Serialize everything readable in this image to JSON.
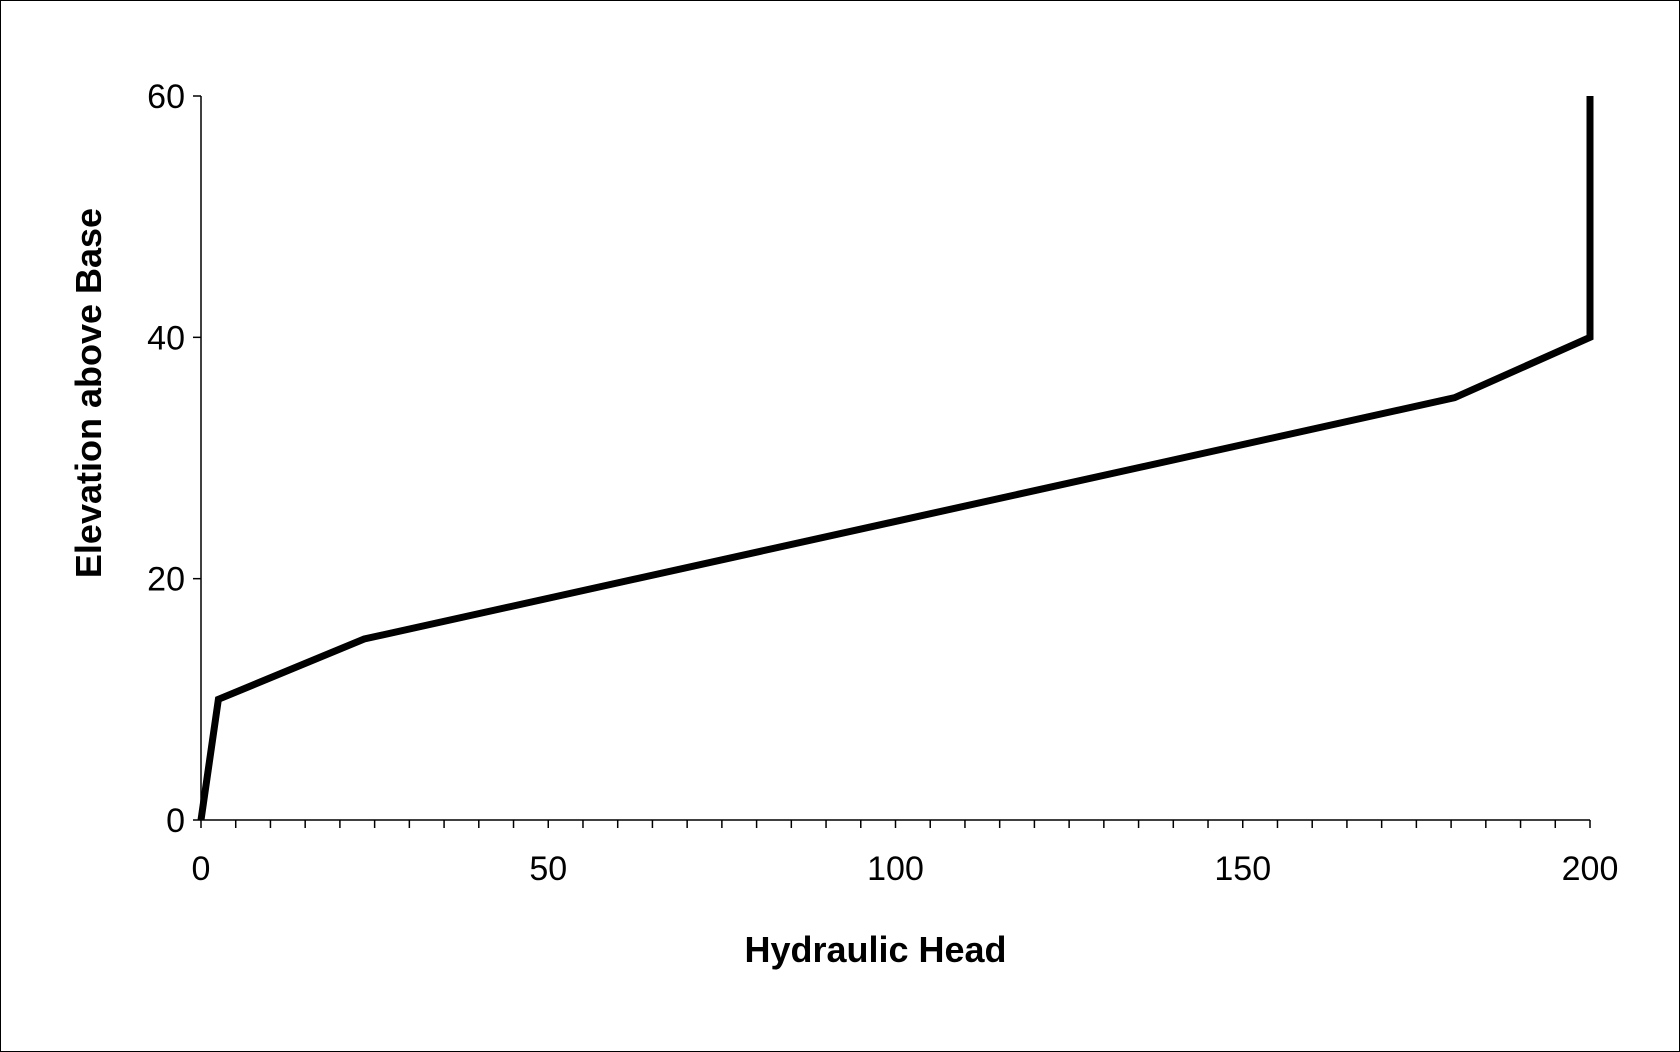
{
  "chart_data": {
    "type": "line",
    "title": "",
    "xlabel": "Hydraulic Head",
    "ylabel": "Elevation above Base",
    "xlim": [
      0,
      200
    ],
    "ylim": [
      0,
      60
    ],
    "x_ticks": [
      0,
      50,
      100,
      150,
      200
    ],
    "x_tick_labels": [
      "0",
      "50",
      "100",
      "150",
      "200"
    ],
    "x_minor_tick_step": 5,
    "y_ticks": [
      0,
      20,
      40,
      60
    ],
    "y_tick_labels": [
      "0",
      "20",
      "40",
      "60"
    ],
    "grid": false,
    "legend": "none",
    "series": [
      {
        "color": "#000000",
        "x": [
          0,
          2.5,
          23.5,
          180.5,
          200,
          200
        ],
        "y": [
          0,
          10,
          15,
          35,
          40,
          60
        ]
      }
    ]
  }
}
